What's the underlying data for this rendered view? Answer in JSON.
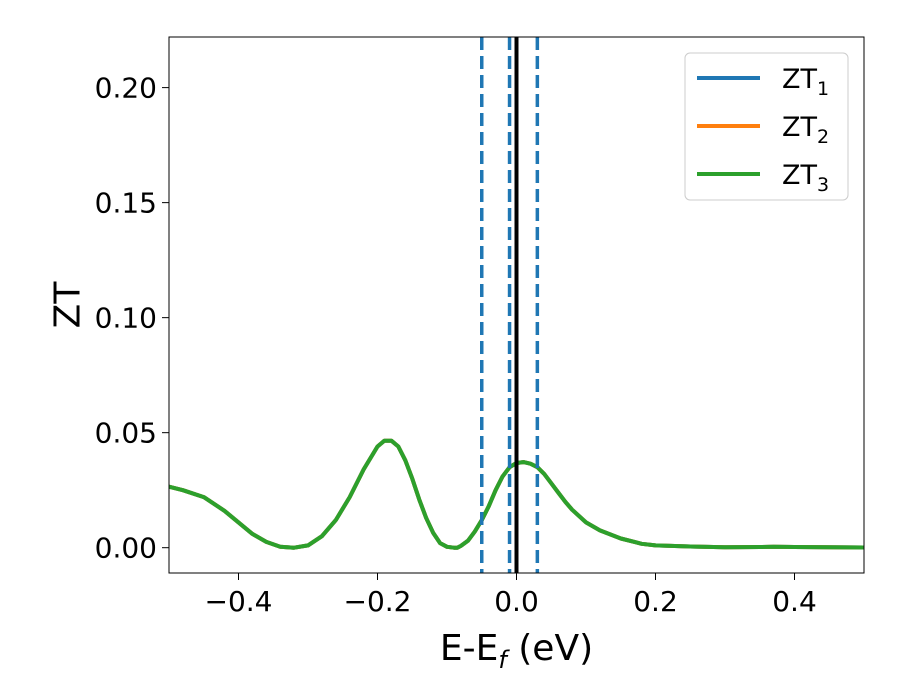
{
  "chart_data": {
    "type": "line",
    "title": "",
    "xlabel": "E-E",
    "xlabel_sub": "f",
    "xlabel_unit": " (eV)",
    "ylabel": "ZT",
    "xlim": [
      -0.5,
      0.5
    ],
    "ylim": [
      -0.011,
      0.222
    ],
    "xticks": [
      -0.4,
      -0.2,
      0.0,
      0.2,
      0.4
    ],
    "xtick_labels": [
      "−0.4",
      "−0.2",
      "0.0",
      "0.2",
      "0.4"
    ],
    "yticks": [
      0.0,
      0.05,
      0.1,
      0.15,
      0.2
    ],
    "ytick_labels": [
      "0.00",
      "0.05",
      "0.10",
      "0.15",
      "0.20"
    ],
    "grid": false,
    "legend_position": "top-right",
    "x": [
      -0.5,
      -0.48,
      -0.45,
      -0.42,
      -0.4,
      -0.38,
      -0.36,
      -0.34,
      -0.32,
      -0.3,
      -0.28,
      -0.26,
      -0.24,
      -0.22,
      -0.2,
      -0.19,
      -0.18,
      -0.17,
      -0.16,
      -0.15,
      -0.14,
      -0.13,
      -0.12,
      -0.11,
      -0.1,
      -0.09,
      -0.085,
      -0.08,
      -0.07,
      -0.06,
      -0.05,
      -0.04,
      -0.03,
      -0.02,
      -0.01,
      0.0,
      0.01,
      0.02,
      0.03,
      0.04,
      0.05,
      0.06,
      0.07,
      0.08,
      0.1,
      0.12,
      0.15,
      0.18,
      0.2,
      0.25,
      0.3,
      0.35,
      0.37,
      0.4,
      0.45,
      0.5
    ],
    "series": [
      {
        "name": "ZT",
        "name_sub": "1",
        "color": "#1f77b4",
        "values": [
          0.0265,
          0.025,
          0.022,
          0.016,
          0.011,
          0.006,
          0.0025,
          0.0004,
          0.0,
          0.001,
          0.005,
          0.012,
          0.022,
          0.034,
          0.044,
          0.0465,
          0.0465,
          0.044,
          0.038,
          0.03,
          0.021,
          0.013,
          0.0065,
          0.002,
          0.0004,
          0.0,
          0.0,
          0.0008,
          0.003,
          0.007,
          0.012,
          0.018,
          0.025,
          0.031,
          0.035,
          0.0368,
          0.0372,
          0.0365,
          0.035,
          0.032,
          0.028,
          0.024,
          0.02,
          0.0165,
          0.011,
          0.0075,
          0.004,
          0.0017,
          0.001,
          0.0005,
          0.0002,
          0.0003,
          0.0004,
          0.0003,
          0.0002,
          0.0001
        ]
      },
      {
        "name": "ZT",
        "name_sub": "2",
        "color": "#ff7f0e",
        "values": [
          0.0265,
          0.025,
          0.022,
          0.016,
          0.011,
          0.006,
          0.0025,
          0.0004,
          0.0,
          0.001,
          0.005,
          0.012,
          0.022,
          0.034,
          0.044,
          0.0465,
          0.0465,
          0.044,
          0.038,
          0.03,
          0.021,
          0.013,
          0.0065,
          0.002,
          0.0004,
          0.0,
          0.0,
          0.0008,
          0.003,
          0.007,
          0.012,
          0.018,
          0.025,
          0.031,
          0.035,
          0.0368,
          0.0372,
          0.0365,
          0.035,
          0.032,
          0.028,
          0.024,
          0.02,
          0.0165,
          0.011,
          0.0075,
          0.004,
          0.0017,
          0.001,
          0.0005,
          0.0002,
          0.0003,
          0.0004,
          0.0003,
          0.0002,
          0.0001
        ]
      },
      {
        "name": "ZT",
        "name_sub": "3",
        "color": "#2ca02c",
        "values": [
          0.0265,
          0.025,
          0.022,
          0.016,
          0.011,
          0.006,
          0.0025,
          0.0004,
          0.0,
          0.001,
          0.005,
          0.012,
          0.022,
          0.034,
          0.044,
          0.0465,
          0.0465,
          0.044,
          0.038,
          0.03,
          0.021,
          0.013,
          0.0065,
          0.002,
          0.0004,
          0.0,
          0.0,
          0.0008,
          0.003,
          0.007,
          0.012,
          0.018,
          0.025,
          0.031,
          0.035,
          0.0368,
          0.0372,
          0.0365,
          0.035,
          0.032,
          0.028,
          0.024,
          0.02,
          0.0165,
          0.011,
          0.0075,
          0.004,
          0.0017,
          0.001,
          0.0005,
          0.0002,
          0.0003,
          0.0004,
          0.0003,
          0.0002,
          0.0001
        ]
      }
    ],
    "vlines": [
      {
        "x": -0.05,
        "style": "dashed",
        "color": "#1f77b4"
      },
      {
        "x": -0.01,
        "style": "dashed",
        "color": "#1f77b4"
      },
      {
        "x": 0.0,
        "style": "solid",
        "color": "#000000"
      },
      {
        "x": 0.03,
        "style": "dashed",
        "color": "#1f77b4"
      }
    ]
  }
}
